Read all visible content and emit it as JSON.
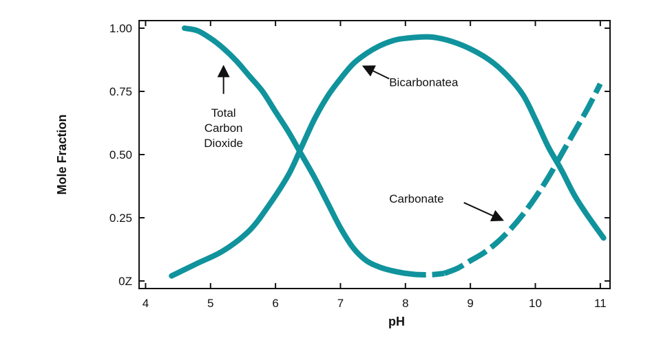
{
  "chart_data": {
    "type": "line",
    "title": "",
    "xlabel": "pH",
    "ylabel": "Mole Fraction",
    "xlim": [
      3.9,
      11.15
    ],
    "ylim": [
      -0.03,
      1.03
    ],
    "x_ticks": [
      4,
      5,
      6,
      7,
      8,
      9,
      10,
      11
    ],
    "x_tick_labels": [
      "4",
      "5",
      "6",
      "7",
      "8",
      "9",
      "10",
      "11"
    ],
    "y_ticks": [
      0,
      0.25,
      0.5,
      0.75,
      1.0
    ],
    "y_tick_labels": [
      "0Z",
      "0.25",
      "0.50",
      "0.75",
      "1.00"
    ],
    "grid": false,
    "color": "#10939c",
    "series": [
      {
        "name": "Total Carbon Dioxide",
        "style": "solid",
        "x": [
          4.6,
          4.8,
          5.0,
          5.2,
          5.4,
          5.6,
          5.8,
          6.0,
          6.2,
          6.4,
          6.6,
          6.8,
          7.0,
          7.2,
          7.4,
          7.6,
          7.8,
          8.0
        ],
        "y": [
          1.0,
          0.99,
          0.96,
          0.92,
          0.87,
          0.81,
          0.75,
          0.67,
          0.59,
          0.5,
          0.41,
          0.31,
          0.21,
          0.13,
          0.08,
          0.055,
          0.04,
          0.03
        ]
      },
      {
        "name": "Total Carbon Dioxide (dashed)",
        "style": "dashed",
        "x": [
          8.0,
          8.2,
          8.4,
          8.6
        ],
        "y": [
          0.03,
          0.025,
          0.025,
          0.03
        ]
      },
      {
        "name": "Bicarbonate",
        "style": "solid",
        "x": [
          4.4,
          4.8,
          5.2,
          5.6,
          5.9,
          6.2,
          6.4,
          6.6,
          6.8,
          7.0,
          7.2,
          7.4,
          7.6,
          7.8,
          8.0,
          8.4,
          8.8,
          9.2,
          9.5,
          9.8,
          10.0,
          10.2,
          10.4,
          10.6,
          10.8,
          11.05
        ],
        "y": [
          0.02,
          0.07,
          0.12,
          0.2,
          0.3,
          0.42,
          0.53,
          0.64,
          0.73,
          0.8,
          0.86,
          0.9,
          0.93,
          0.95,
          0.96,
          0.965,
          0.94,
          0.89,
          0.83,
          0.74,
          0.64,
          0.53,
          0.44,
          0.34,
          0.26,
          0.17
        ]
      },
      {
        "name": "Carbonate",
        "style": "dashed",
        "x": [
          8.6,
          8.8,
          9.0,
          9.2,
          9.4,
          9.6,
          9.8,
          10.0,
          10.2,
          10.4,
          10.6,
          10.8,
          11.0
        ],
        "y": [
          0.03,
          0.05,
          0.08,
          0.11,
          0.15,
          0.2,
          0.26,
          0.33,
          0.41,
          0.5,
          0.59,
          0.68,
          0.78
        ]
      }
    ],
    "annotations": [
      {
        "lines": [
          "Total",
          "Carbon",
          "Dioxide"
        ],
        "text_x": 5.2,
        "text_y": 0.65,
        "arrow_from": [
          5.2,
          0.74
        ],
        "arrow_to": [
          5.2,
          0.85
        ]
      },
      {
        "lines": [
          "Bicarbonatea"
        ],
        "text_x": 7.75,
        "text_y": 0.77,
        "arrow_from": [
          7.75,
          0.8
        ],
        "arrow_to": [
          7.35,
          0.85
        ]
      },
      {
        "lines": [
          "Carbonate"
        ],
        "text_x": 7.75,
        "text_y": 0.31,
        "arrow_from": [
          8.9,
          0.31
        ],
        "arrow_to": [
          9.5,
          0.24
        ]
      }
    ]
  }
}
